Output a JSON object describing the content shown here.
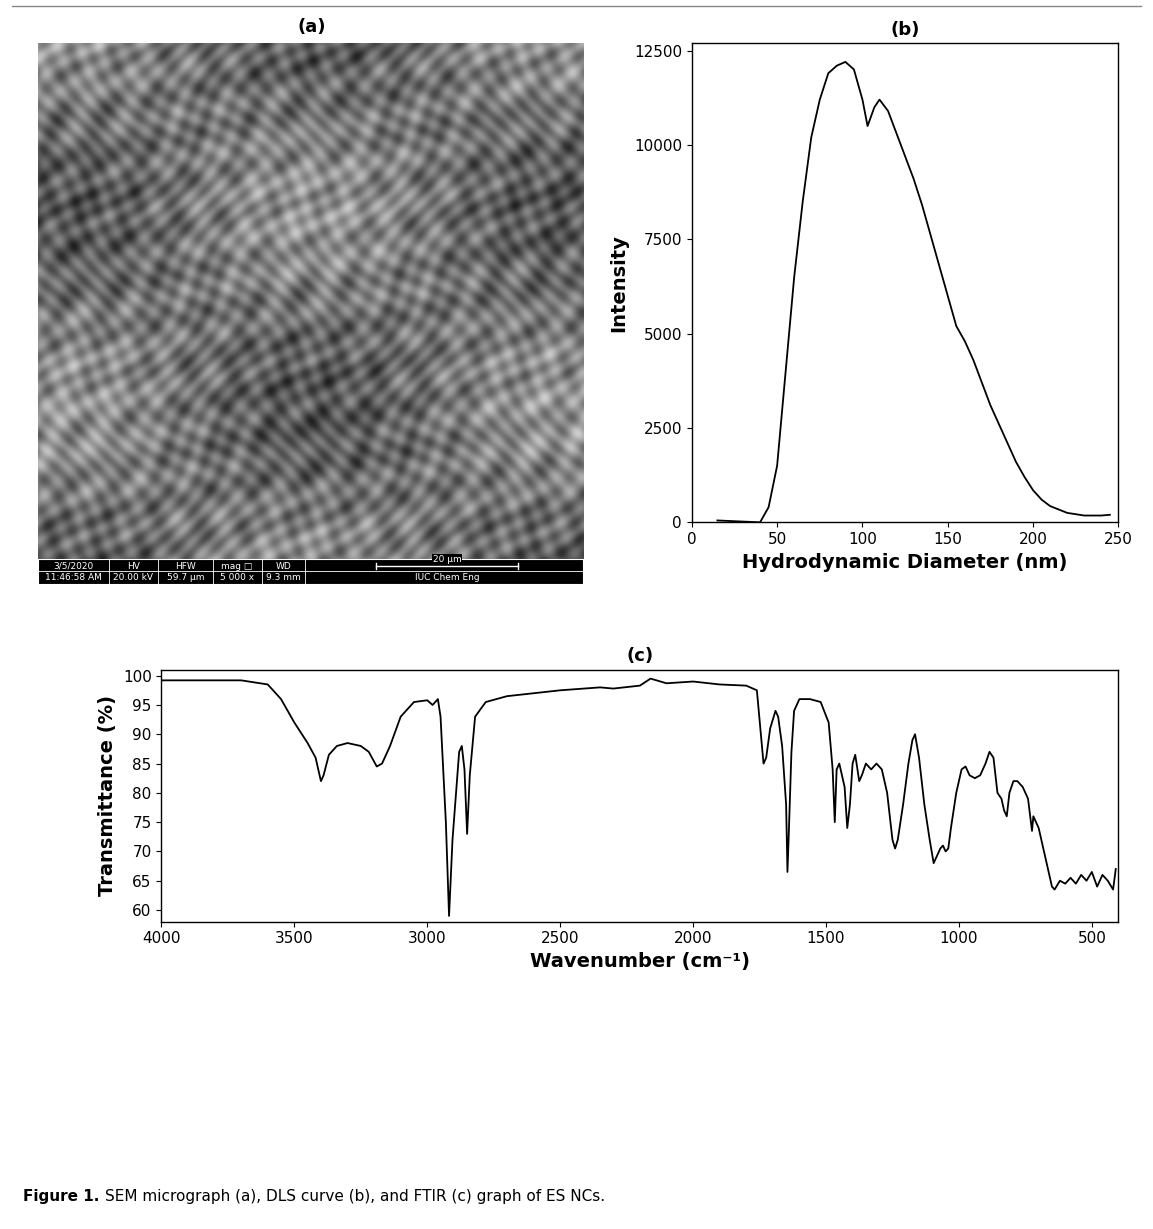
{
  "caption": {
    "label": "Figure 1.",
    "text": "SEM micrograph (a), DLS curve (b), and FTIR (c) graph of ES NCs."
  },
  "image_panel": {
    "title": "(a)",
    "info_bar": [
      [
        "3/5/2020",
        "11:46:58 AM"
      ],
      [
        "HV",
        "20.00 kV"
      ],
      [
        "HFW",
        "59.7 µm"
      ],
      [
        "mag □",
        "5 000 x"
      ],
      [
        "WD",
        "9.3 mm"
      ]
    ],
    "scale_bar": "20 µm",
    "lab": "IUC Chem Eng"
  },
  "chart_data": [
    {
      "type": "line",
      "title": "(b)",
      "x_label": "Hydrodynamic Diameter (nm)",
      "y_label": "Intensity",
      "color": "#000000",
      "x": [
        15,
        20,
        30,
        40,
        45,
        50,
        55,
        60,
        65,
        70,
        75,
        80,
        85,
        90,
        95,
        100,
        103,
        107,
        110,
        115,
        120,
        125,
        130,
        135,
        140,
        145,
        150,
        155,
        160,
        165,
        170,
        175,
        180,
        185,
        190,
        195,
        200,
        205,
        210,
        220,
        230,
        240,
        245
      ],
      "values": [
        50,
        40,
        20,
        0,
        400,
        1500,
        4000,
        6500,
        8500,
        10200,
        11200,
        11900,
        12100,
        12200,
        12000,
        11200,
        10500,
        11000,
        11200,
        10900,
        10300,
        9700,
        9100,
        8400,
        7600,
        6800,
        6000,
        5200,
        4800,
        4300,
        3700,
        3100,
        2600,
        2100,
        1600,
        1200,
        850,
        600,
        430,
        250,
        180,
        180,
        200
      ],
      "xlim": [
        0,
        250
      ],
      "xticks": [
        0,
        50,
        100,
        150,
        200,
        250
      ],
      "ylim": [
        0,
        12700
      ],
      "yticks": [
        0,
        2500,
        5000,
        7500,
        10000,
        12500
      ]
    },
    {
      "type": "line",
      "title": "(c)",
      "x_label": "Wavenumber (cm⁻¹)",
      "y_label": "Transmittance (%)",
      "color": "#000000",
      "x": [
        4000,
        3700,
        3600,
        3550,
        3500,
        3450,
        3420,
        3400,
        3390,
        3370,
        3340,
        3300,
        3250,
        3220,
        3190,
        3170,
        3140,
        3100,
        3050,
        3000,
        2980,
        2960,
        2950,
        2930,
        2918,
        2905,
        2880,
        2870,
        2860,
        2850,
        2840,
        2820,
        2780,
        2700,
        2500,
        2350,
        2300,
        2200,
        2160,
        2100,
        2000,
        1900,
        1800,
        1760,
        1745,
        1735,
        1725,
        1710,
        1690,
        1680,
        1665,
        1650,
        1645,
        1640,
        1630,
        1620,
        1600,
        1560,
        1520,
        1490,
        1475,
        1467,
        1460,
        1450,
        1430,
        1420,
        1410,
        1400,
        1390,
        1375,
        1365,
        1350,
        1330,
        1310,
        1290,
        1270,
        1250,
        1240,
        1230,
        1210,
        1190,
        1175,
        1165,
        1150,
        1130,
        1110,
        1095,
        1085,
        1070,
        1060,
        1050,
        1040,
        1030,
        1010,
        990,
        975,
        960,
        940,
        920,
        900,
        885,
        870,
        855,
        840,
        830,
        820,
        810,
        795,
        780,
        760,
        740,
        725,
        720,
        710,
        700,
        690,
        680,
        670,
        660,
        650,
        640,
        620,
        600,
        580,
        560,
        540,
        520,
        500,
        480,
        460,
        440,
        420,
        410
      ],
      "values": [
        99.2,
        99.2,
        98.5,
        96,
        92,
        88.5,
        86,
        82,
        83,
        86.5,
        88,
        88.5,
        88,
        87,
        84.5,
        85,
        88,
        93,
        95.5,
        95.8,
        95,
        96,
        93,
        75,
        59,
        72,
        87,
        88,
        84,
        73,
        83,
        93,
        95.5,
        96.5,
        97.5,
        98,
        97.8,
        98.3,
        99.5,
        98.7,
        99,
        98.5,
        98.3,
        97.5,
        90,
        85,
        86,
        91,
        94,
        93,
        88,
        78,
        66.5,
        73,
        87,
        94,
        96,
        96,
        95.5,
        92,
        84,
        75,
        84,
        85,
        81,
        74,
        78,
        85,
        86.5,
        82,
        83,
        85,
        84,
        85,
        84,
        80,
        72,
        70.5,
        72,
        78,
        85,
        89,
        90,
        86,
        78,
        72,
        68,
        69,
        70.5,
        71,
        70,
        70.5,
        74,
        80,
        84,
        84.5,
        83,
        82.5,
        83,
        85,
        87,
        86,
        80,
        79,
        77,
        76,
        80,
        82,
        82,
        81,
        79,
        73.5,
        76,
        75,
        74,
        72,
        70,
        68,
        66,
        64,
        63.5,
        65,
        64.5,
        65.5,
        64.5,
        66,
        65,
        66.5,
        64,
        66,
        65,
        63.5,
        67
      ],
      "xlim": [
        4000,
        400
      ],
      "xticks": [
        4000,
        3500,
        3000,
        2500,
        2000,
        1500,
        1000,
        500
      ],
      "ylim": [
        58,
        101
      ],
      "yticks": [
        60,
        65,
        70,
        75,
        80,
        85,
        90,
        95,
        100
      ]
    }
  ]
}
